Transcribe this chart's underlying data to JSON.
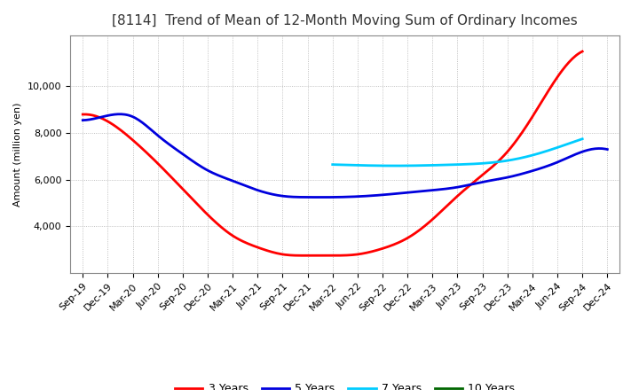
{
  "title": "[8114]  Trend of Mean of 12-Month Moving Sum of Ordinary Incomes",
  "ylabel": "Amount (million yen)",
  "background_color": "#ffffff",
  "plot_bg_color": "#ffffff",
  "grid_color": "#b0b0b0",
  "x_labels": [
    "Sep-19",
    "Dec-19",
    "Mar-20",
    "Jun-20",
    "Sep-20",
    "Dec-20",
    "Mar-21",
    "Jun-21",
    "Sep-21",
    "Dec-21",
    "Mar-22",
    "Jun-22",
    "Sep-22",
    "Dec-22",
    "Mar-23",
    "Jun-23",
    "Sep-23",
    "Dec-23",
    "Mar-24",
    "Jun-24",
    "Sep-24",
    "Dec-24"
  ],
  "series": [
    {
      "label": "3 Years",
      "color": "#ff0000",
      "data_x": [
        0,
        1,
        2,
        3,
        4,
        5,
        6,
        7,
        8,
        9,
        10,
        11,
        12,
        13,
        14,
        15,
        16,
        17,
        18,
        19,
        20
      ],
      "data_y": [
        8800,
        8500,
        7700,
        6700,
        5600,
        4500,
        3600,
        3100,
        2800,
        2750,
        2750,
        2800,
        3050,
        3500,
        4300,
        5300,
        6200,
        7200,
        8700,
        10400,
        11500
      ]
    },
    {
      "label": "5 Years",
      "color": "#0000dd",
      "data_x": [
        0,
        1,
        2,
        3,
        4,
        5,
        6,
        7,
        8,
        9,
        10,
        11,
        12,
        13,
        14,
        15,
        16,
        17,
        18,
        19,
        20,
        21
      ],
      "data_y": [
        8550,
        8750,
        8700,
        7900,
        7100,
        6400,
        5950,
        5550,
        5300,
        5250,
        5250,
        5280,
        5350,
        5450,
        5550,
        5680,
        5900,
        6100,
        6380,
        6750,
        7200,
        7300
      ]
    },
    {
      "label": "7 Years",
      "color": "#00ccff",
      "data_x": [
        10,
        11,
        12,
        13,
        14,
        15,
        16,
        17,
        18,
        19,
        20
      ],
      "data_y": [
        6650,
        6620,
        6600,
        6600,
        6620,
        6650,
        6700,
        6820,
        7050,
        7380,
        7750
      ]
    },
    {
      "label": "10 Years",
      "color": "#006600",
      "data_x": [],
      "data_y": []
    }
  ],
  "ylim": [
    2000,
    12200
  ],
  "yticks": [
    4000,
    6000,
    8000,
    10000
  ],
  "title_fontsize": 11,
  "legend_fontsize": 9,
  "axis_fontsize": 8,
  "linewidth": 2.0
}
